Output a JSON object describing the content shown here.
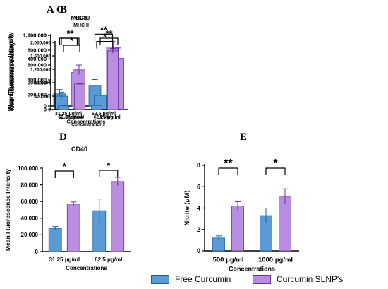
{
  "legend": {
    "items": [
      {
        "name": "Free Curcumin",
        "color": "#5b9bd5",
        "stroke": "#1f5fa0"
      },
      {
        "name": "Curcumin SLNP's",
        "color": "#b98ee0",
        "stroke": "#6a2fa0"
      }
    ]
  },
  "chart_data": [
    {
      "id": "A",
      "type": "bar",
      "title": "MHC I",
      "xlabel": "Concentrations",
      "ylabel": "Mean Fluorescence Intensity",
      "categories": [
        "31.25 μg/ml",
        "62.5 μg/ml"
      ],
      "ylim": [
        0,
        600000
      ],
      "yticks": [
        0,
        200000,
        400000,
        600000
      ],
      "ytick_labels": [
        "0",
        "200,000",
        "400,000",
        "600,000"
      ],
      "series": [
        {
          "name": "Free Curcumin",
          "values": [
            110000,
            170000
          ],
          "errors": [
            30000,
            55000
          ]
        },
        {
          "name": "Curcumin SLNP's",
          "values": [
            285000,
            500000
          ],
          "errors": [
            15000,
            50000
          ]
        }
      ],
      "significance": [
        "*",
        "**"
      ]
    },
    {
      "id": "B",
      "type": "bar",
      "title": "CD80",
      "xlabel": "",
      "ylabel": "Mean Fluorescence Intensity",
      "categories": [
        "62.5 μg/ml",
        "125 μg/ml"
      ],
      "ylim": [
        0,
        1000000
      ],
      "yticks": [
        0,
        200000,
        400000,
        600000,
        800000,
        1000000
      ],
      "ytick_labels": [
        "0",
        "200,000",
        "400,000",
        "600,000",
        "800,000",
        "1,000,000"
      ],
      "series": [
        {
          "name": "Free Curcumin",
          "values": [
            180000,
            190000
          ],
          "errors": [
            55000,
            5000
          ]
        },
        {
          "name": "Curcumin SLNP's",
          "values": [
            535000,
            690000
          ],
          "errors": [
            65000,
            140000
          ]
        }
      ],
      "significance": [
        "**",
        "**"
      ]
    },
    {
      "id": "C",
      "type": "bar",
      "title": "MHC II",
      "xlabel": "Concentrations",
      "ylabel": "Mean Fluorescence Intensity",
      "categories": [
        "31.25 μg/ml",
        "62.5 μg/ml"
      ],
      "ylim": [
        0,
        2000000
      ],
      "yticks": [
        0,
        400000,
        800000,
        1200000,
        1600000,
        2000000
      ],
      "ytick_labels": [
        "0",
        "400,000",
        "800,000",
        "1,200,000",
        "1,600,000",
        "2,000,000"
      ],
      "series": [
        {
          "name": "Free Curcumin",
          "values": [
            110000,
            120000
          ],
          "errors": [
            10000,
            10000
          ]
        },
        {
          "name": "Curcumin SLNP's",
          "values": [
            760000,
            1750000
          ],
          "errors": [
            15000,
            70000
          ]
        }
      ],
      "significance": [
        "*",
        "*"
      ]
    },
    {
      "id": "D",
      "type": "bar",
      "title": "CD40",
      "xlabel": "Concentrations",
      "ylabel": "Mean Fluorescence Intensity",
      "categories": [
        "31.25 μg/ml",
        "62.5 μg/ml"
      ],
      "ylim": [
        0,
        100000
      ],
      "yticks": [
        0,
        20000,
        40000,
        60000,
        80000,
        100000
      ],
      "ytick_labels": [
        "0",
        "20,000",
        "40,000",
        "60,000",
        "80,000",
        "100,000"
      ],
      "series": [
        {
          "name": "Free Curcumin",
          "values": [
            28000,
            49000
          ],
          "errors": [
            2000,
            14000
          ]
        },
        {
          "name": "Curcumin SLNP's",
          "values": [
            57000,
            84000
          ],
          "errors": [
            2500,
            5000
          ]
        }
      ],
      "significance": [
        "*",
        "*"
      ]
    },
    {
      "id": "E",
      "type": "bar",
      "title": "",
      "xlabel": "Concentrations",
      "ylabel": "Nitrite (μM)",
      "categories": [
        "500 μg/ml",
        "1000 μg/ml"
      ],
      "ylim": [
        0,
        8
      ],
      "yticks": [
        0,
        2,
        4,
        6,
        8
      ],
      "ytick_labels": [
        "0",
        "2",
        "4",
        "6",
        "8"
      ],
      "series": [
        {
          "name": "Free Curcumin",
          "values": [
            1.2,
            3.3
          ],
          "errors": [
            0.2,
            0.7
          ]
        },
        {
          "name": "Curcumin SLNP's",
          "values": [
            4.2,
            5.1
          ],
          "errors": [
            0.4,
            0.7
          ]
        }
      ],
      "significance": [
        "**",
        "*"
      ]
    }
  ]
}
